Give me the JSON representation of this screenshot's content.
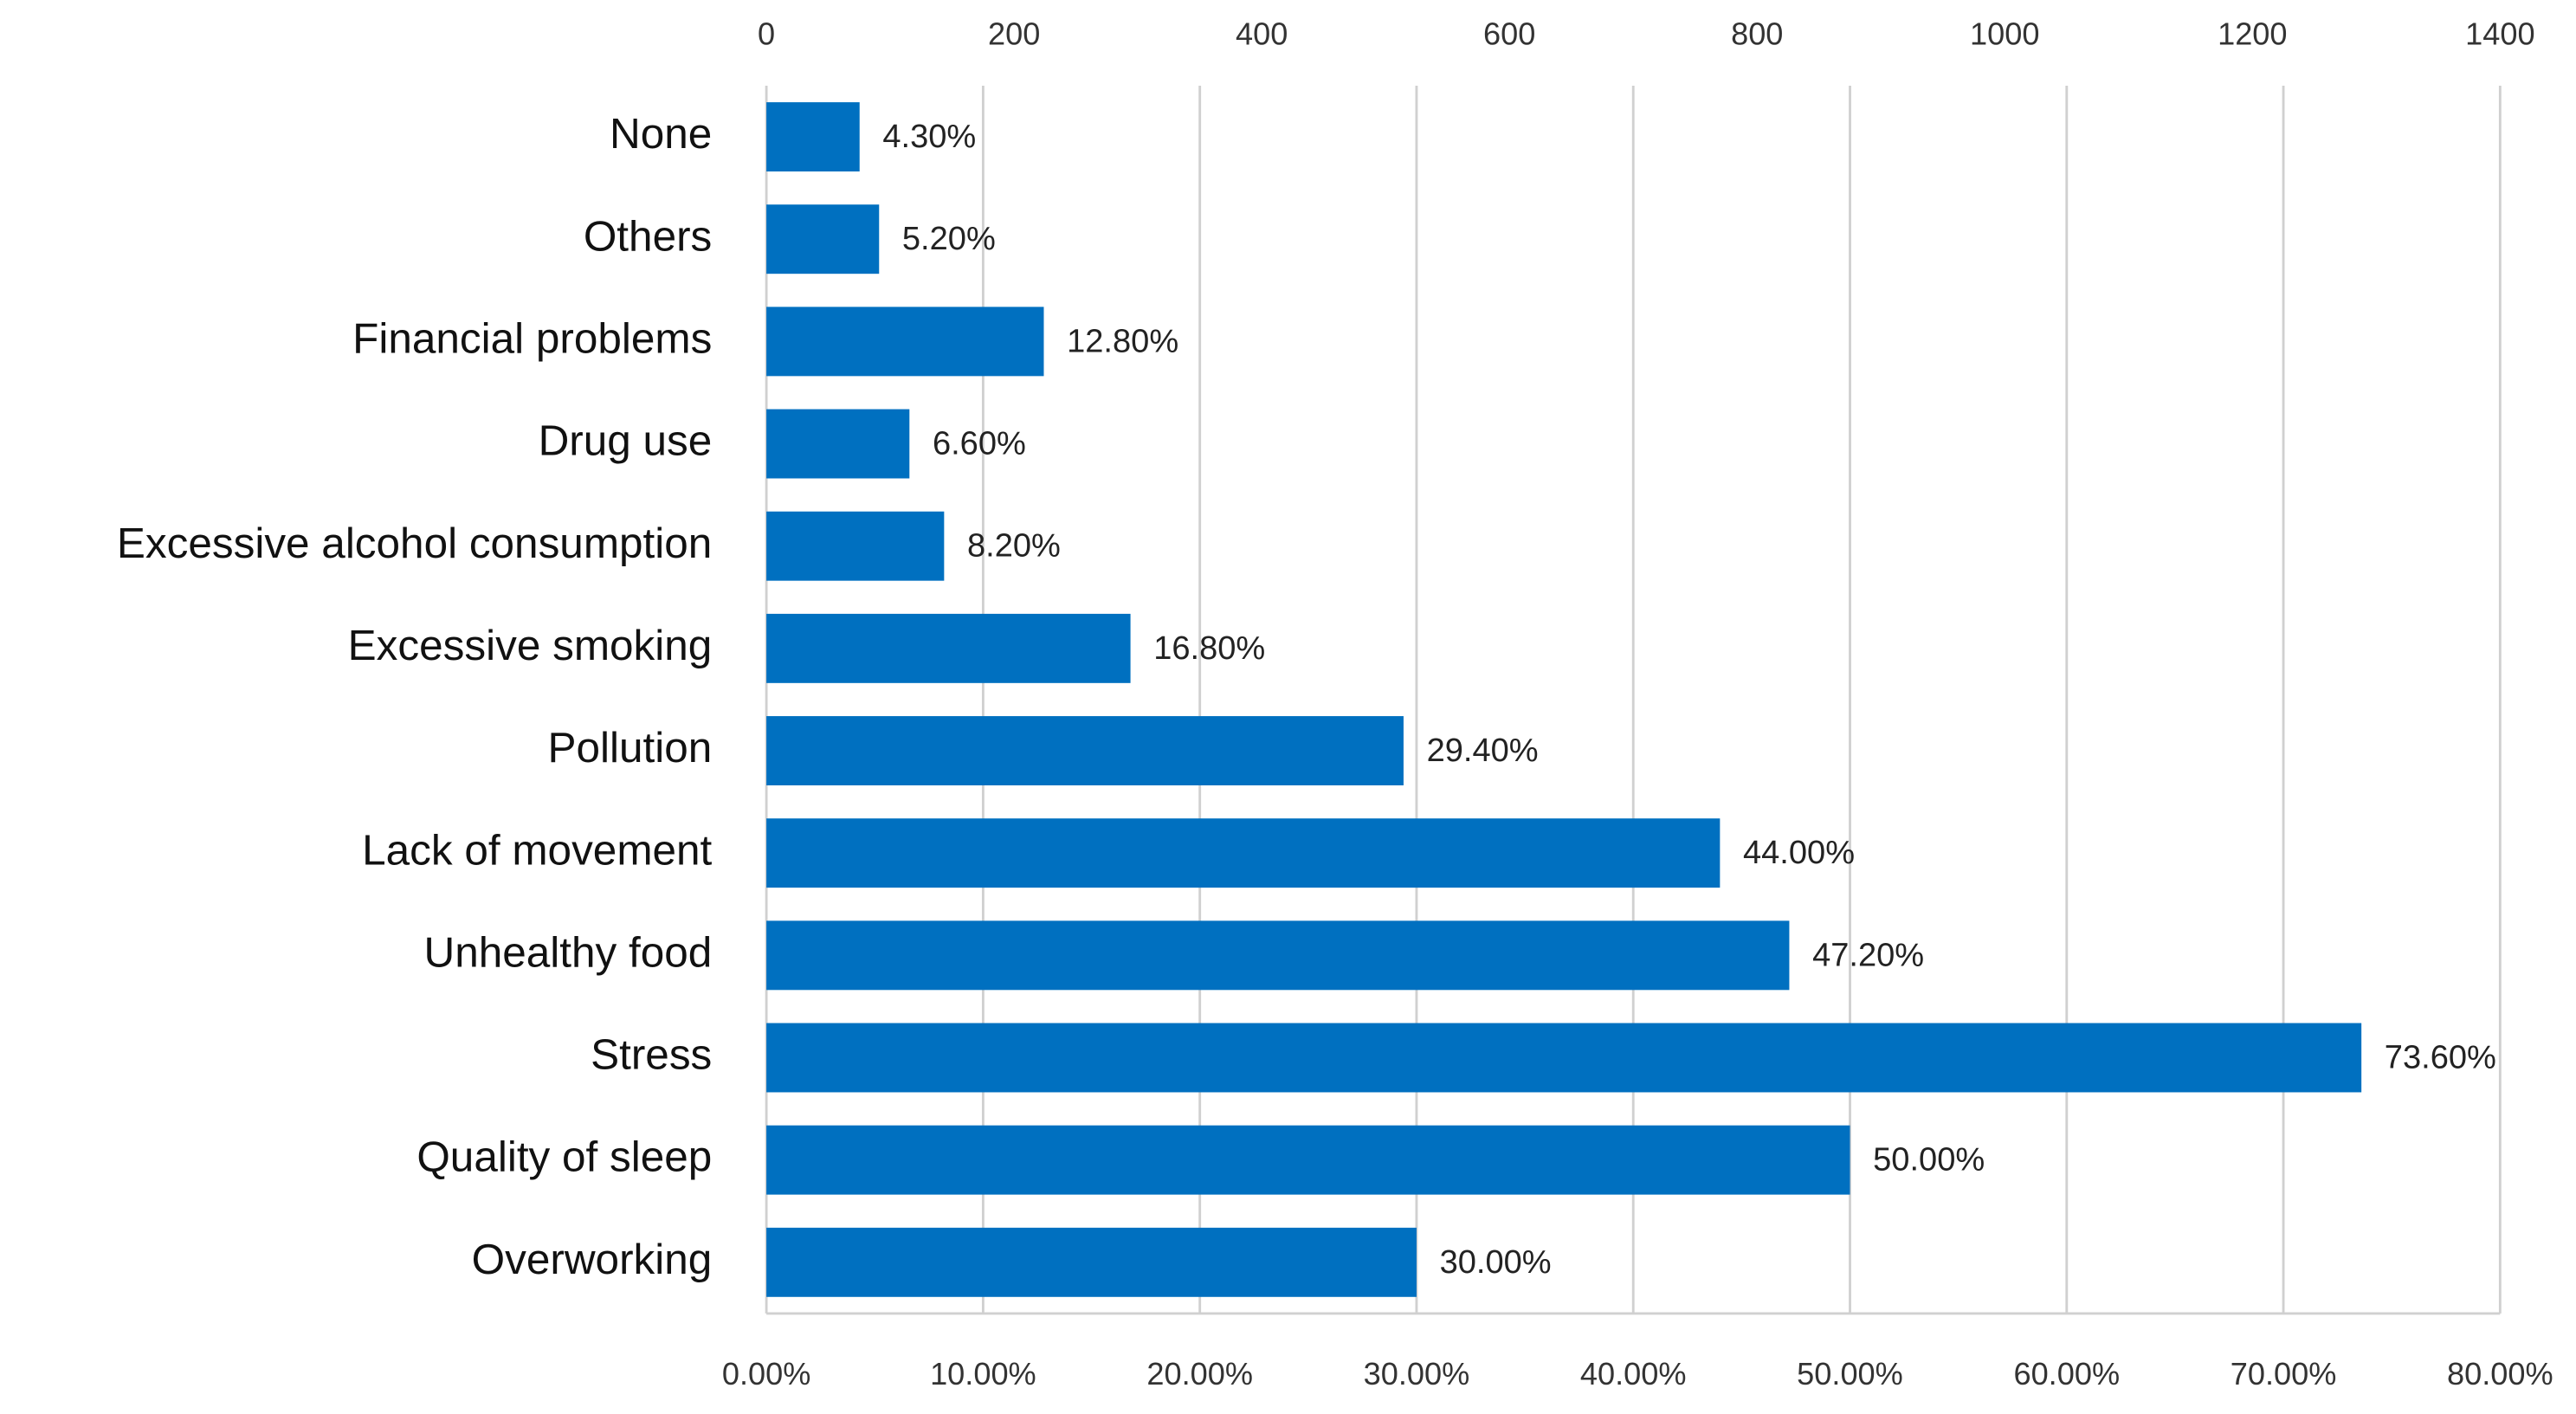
{
  "chart_data": {
    "type": "bar",
    "categories": [
      "None",
      "Others",
      "Financial problems",
      "Drug use",
      "Excessive alcohol consumption",
      "Excessive smoking",
      "Pollution",
      "Lack of movement",
      "Unhealthy food",
      "Stress",
      "Quality of sleep",
      "Overworking"
    ],
    "values": [
      4.3,
      5.2,
      12.8,
      6.6,
      8.2,
      16.8,
      29.4,
      44.0,
      47.2,
      73.6,
      50.0,
      30.0
    ],
    "value_labels": [
      "4.30%",
      "5.20%",
      "12.80%",
      "6.60%",
      "8.20%",
      "16.80%",
      "29.40%",
      "44.00%",
      "47.20%",
      "73.60%",
      "50.00%",
      "30.00%"
    ],
    "color": "#0070c0",
    "xlim": [
      0,
      80
    ],
    "xticks": [
      {
        "value": 0,
        "label": "0.00%"
      },
      {
        "value": 10,
        "label": "10.00%"
      },
      {
        "value": 20,
        "label": "20.00%"
      },
      {
        "value": 30,
        "label": "30.00%"
      },
      {
        "value": 40,
        "label": "40.00%"
      },
      {
        "value": 50,
        "label": "50.00%"
      },
      {
        "value": 60,
        "label": "60.00%"
      },
      {
        "value": 70,
        "label": "70.00%"
      },
      {
        "value": 80,
        "label": "80.00%"
      }
    ],
    "x2lim": [
      0,
      1400
    ],
    "x2ticks": [
      0,
      200,
      400,
      600,
      800,
      1000,
      1200,
      1400
    ],
    "grid": true
  }
}
